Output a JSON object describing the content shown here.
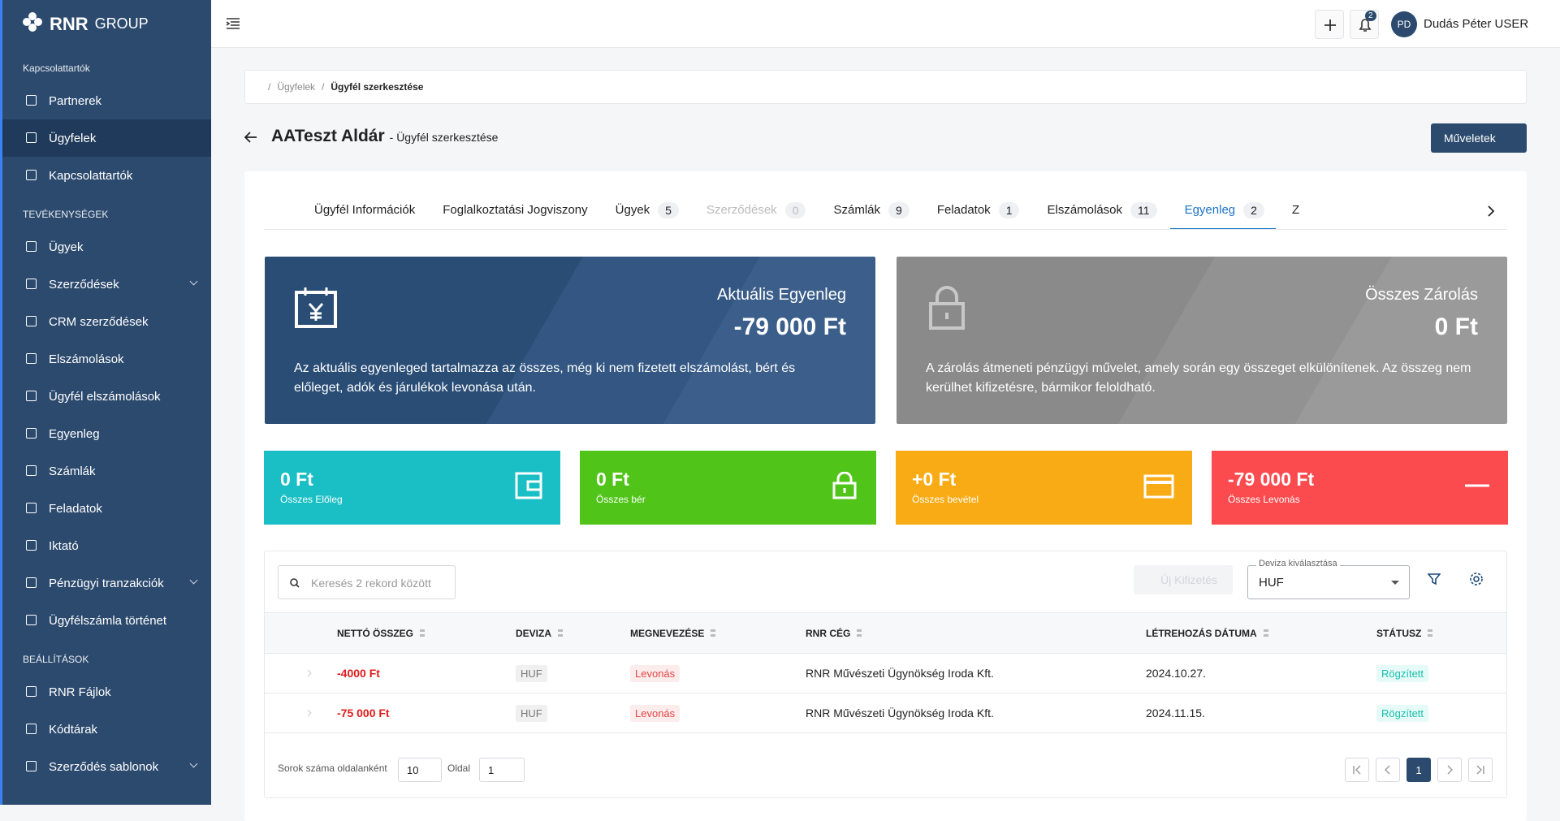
{
  "sidebar": {
    "brand": "RNR",
    "brand_sub": "GROUP",
    "sections": [
      {
        "title": "Kapcsolattartók",
        "items": [
          "Partnerek",
          "Ügyfelek",
          "Kapcsolattartók"
        ]
      },
      {
        "title": "TEVÉKENYSÉGEK",
        "items": [
          "Ügyek",
          "Szerződések",
          "CRM szerződések",
          "Elszámolások",
          "Ügyfél elszámolások",
          "Egyenleg",
          "Számlák",
          "Feladatok",
          "Iktató",
          "Pénzügyi tranzakciók",
          "Ügyfélszámla történet"
        ]
      },
      {
        "title": "BEÁLLÍTÁSOK",
        "items": [
          "RNR Fájlok",
          "Kódtárak",
          "Szerződés sablonok"
        ]
      }
    ]
  },
  "topbar": {
    "notification_count": "2",
    "avatar": "PD",
    "user": "Dudás Péter USER"
  },
  "breadcrumb": [
    "Ügyfelek",
    "Ügyfél szerkesztése"
  ],
  "page": {
    "title": "AATeszt Aldár",
    "subtitle": "- Ügyfél szerkesztése",
    "actions": "Műveletek"
  },
  "tabs": [
    {
      "label": "Ügyfél Információk"
    },
    {
      "label": "Foglalkoztatási Jogviszony"
    },
    {
      "label": "Ügyek",
      "count": "5"
    },
    {
      "label": "Szerződések",
      "count": "0"
    },
    {
      "label": "Számlák",
      "count": "9"
    },
    {
      "label": "Feladatok",
      "count": "1"
    },
    {
      "label": "Elszámolások",
      "count": "11"
    },
    {
      "label": "Egyenleg",
      "count": "2"
    },
    {
      "label": "Z"
    }
  ],
  "balance_cards": [
    {
      "title": "Aktuális Egyenleg",
      "amount": "-79 000 Ft",
      "text": "Az aktuális egyenleged tartalmazza az összes, még ki nem fizetett elszámolást, bért és előleget, adók és járulékok levonása után."
    },
    {
      "title": "Összes Zárolás",
      "amount": "0 Ft",
      "text": "A zárolás átmeneti pénzügyi művelet, amely során egy összeget elkülönítenek. Az összeg nem kerülhet kifizetésre, bármikor feloldható."
    }
  ],
  "stat_cards": [
    {
      "value": "0 Ft",
      "label": "Összes Előleg"
    },
    {
      "value": "0 Ft",
      "label": "Összes bér"
    },
    {
      "value": "+0 Ft",
      "label": "Összes bevétel"
    },
    {
      "value": "-79 000 Ft",
      "label": "Összes Levonás"
    }
  ],
  "table": {
    "search_placeholder": "Keresés 2 rekord között",
    "new_payment": "Új Kifizetés",
    "currency_label": "Deviza kiválasztása",
    "currency": "HUF",
    "columns": [
      "NETTÓ ÖSSZEG",
      "DEVIZA",
      "MEGNEVEZÉSE",
      "RNR CÉG",
      "LÉTREHOZÁS DÁTUMA",
      "STÁTUSZ"
    ],
    "rows": [
      [
        "-4000 Ft",
        "HUF",
        "Levonás",
        "RNR Művészeti Ügynökség Iroda Kft.",
        "2024.10.27.",
        "Rögzített"
      ],
      [
        "-75 000 Ft",
        "HUF",
        "Levonás",
        "RNR Művészeti Ügynökség Iroda Kft.",
        "2024.11.15.",
        "Rögzített"
      ]
    ]
  },
  "pagination": {
    "rows_per_page_label": "Sorok száma oldalanként",
    "rows_per_page": "10",
    "page_label": "Oldal",
    "page": "1",
    "current": "1"
  }
}
